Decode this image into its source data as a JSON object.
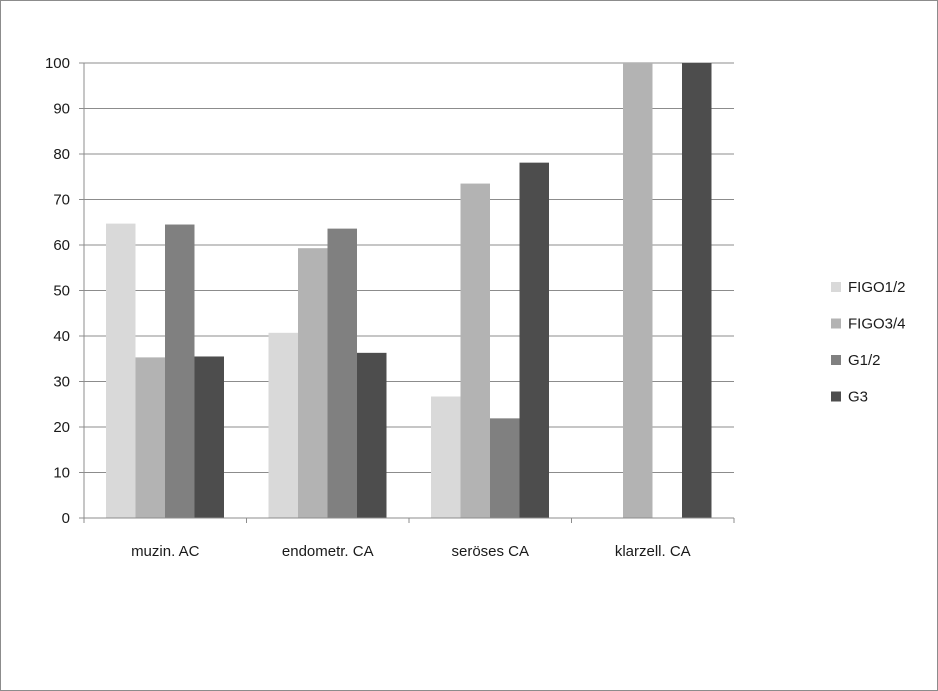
{
  "chart_data": {
    "type": "bar",
    "title": "",
    "xlabel": "",
    "ylabel": "",
    "categories": [
      "muzin. AC",
      "endometr. CA",
      "seröses CA",
      "klarzell. CA"
    ],
    "series": [
      {
        "name": "FIGO1/2",
        "values": [
          64.7,
          40.7,
          26.7,
          0
        ],
        "color": "#d9d9d9"
      },
      {
        "name": "FIGO3/4",
        "values": [
          35.3,
          59.3,
          73.5,
          100
        ],
        "color": "#b3b3b3"
      },
      {
        "name": "G1/2",
        "values": [
          64.5,
          63.6,
          21.9,
          0
        ],
        "color": "#808080"
      },
      {
        "name": "G3",
        "values": [
          35.5,
          36.3,
          78.1,
          100
        ],
        "color": "#4d4d4d"
      }
    ],
    "ylim": [
      0,
      100
    ],
    "yticks": [
      "0",
      "10",
      "20",
      "30",
      "40",
      "50",
      "60",
      "70",
      "80",
      "90",
      "100"
    ],
    "grid": true,
    "legend_position": "right"
  }
}
